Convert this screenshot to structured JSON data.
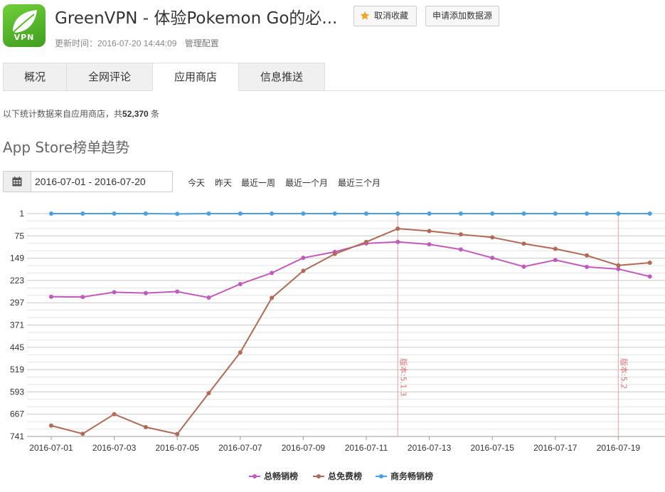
{
  "app": {
    "name": "GreenVPN - 体验Pokemon Go的必...",
    "icon_label": "VPN",
    "icon": "leaf-icon"
  },
  "header": {
    "unfavorite_label": "取消收藏",
    "request_source_label": "申请添加数据源",
    "updated_label": "更新时间：2016-07-20 14:44:09",
    "manage_label": "管理配置"
  },
  "tabs": [
    {
      "label": "概况"
    },
    {
      "label": "全网评论"
    },
    {
      "label": "应用商店",
      "active": true
    },
    {
      "label": "信息推送"
    }
  ],
  "stats": {
    "prefix": "以下统计数据来自应用商店，共",
    "count": "52,370",
    "suffix": " 条"
  },
  "section_title": "App Store榜单趋势",
  "date_range": {
    "value": "2016-07-01 - 2016-07-20",
    "icon": "calendar-icon"
  },
  "quick_ranges": [
    "今天",
    "昨天",
    "最近一周",
    "最近一个月",
    "最近三个月"
  ],
  "colors": {
    "accent_green": "#4caf2a",
    "series_top_grossing": "#c05bbc",
    "series_top_free": "#b06a55",
    "series_business": "#4a9fe0",
    "version_line": "#f0a0a0"
  },
  "chart_data": {
    "type": "line",
    "x": [
      "2016-07-01",
      "2016-07-02",
      "2016-07-03",
      "2016-07-04",
      "2016-07-05",
      "2016-07-06",
      "2016-07-07",
      "2016-07-08",
      "2016-07-09",
      "2016-07-10",
      "2016-07-11",
      "2016-07-12",
      "2016-07-13",
      "2016-07-14",
      "2016-07-15",
      "2016-07-16",
      "2016-07-17",
      "2016-07-18",
      "2016-07-19",
      "2016-07-20"
    ],
    "x_tick_labels": [
      "2016-07-01",
      "2016-07-03",
      "2016-07-05",
      "2016-07-07",
      "2016-07-09",
      "2016-07-11",
      "2016-07-13",
      "2016-07-15",
      "2016-07-17",
      "2016-07-19"
    ],
    "y_tick_labels": [
      "1",
      "75",
      "149",
      "223",
      "297",
      "371",
      "445",
      "519",
      "593",
      "667",
      "741"
    ],
    "ylim": [
      741,
      1
    ],
    "y_inverted": true,
    "grid": true,
    "legend_position": "bottom",
    "series": [
      {
        "name": "总畅销榜",
        "values": [
          277,
          278,
          262,
          265,
          260,
          280,
          235,
          198,
          148,
          128,
          100,
          95,
          103,
          120,
          148,
          177,
          155,
          178,
          185,
          210
        ]
      },
      {
        "name": "总免费榜",
        "values": [
          705,
          732,
          667,
          710,
          733,
          597,
          462,
          281,
          191,
          135,
          95,
          51,
          59,
          70,
          80,
          101,
          118,
          140,
          173,
          164
        ]
      },
      {
        "name": "商务畅销榜",
        "values": [
          1,
          1,
          1,
          1,
          2,
          1,
          1,
          1,
          1,
          1,
          1,
          1,
          1,
          1,
          1,
          1,
          1,
          1,
          1,
          1
        ]
      }
    ],
    "annotations": [
      {
        "x": "2016-07-12",
        "text": "版本:5.1.3"
      },
      {
        "x": "2016-07-19",
        "text": "版本:5.2"
      }
    ]
  }
}
